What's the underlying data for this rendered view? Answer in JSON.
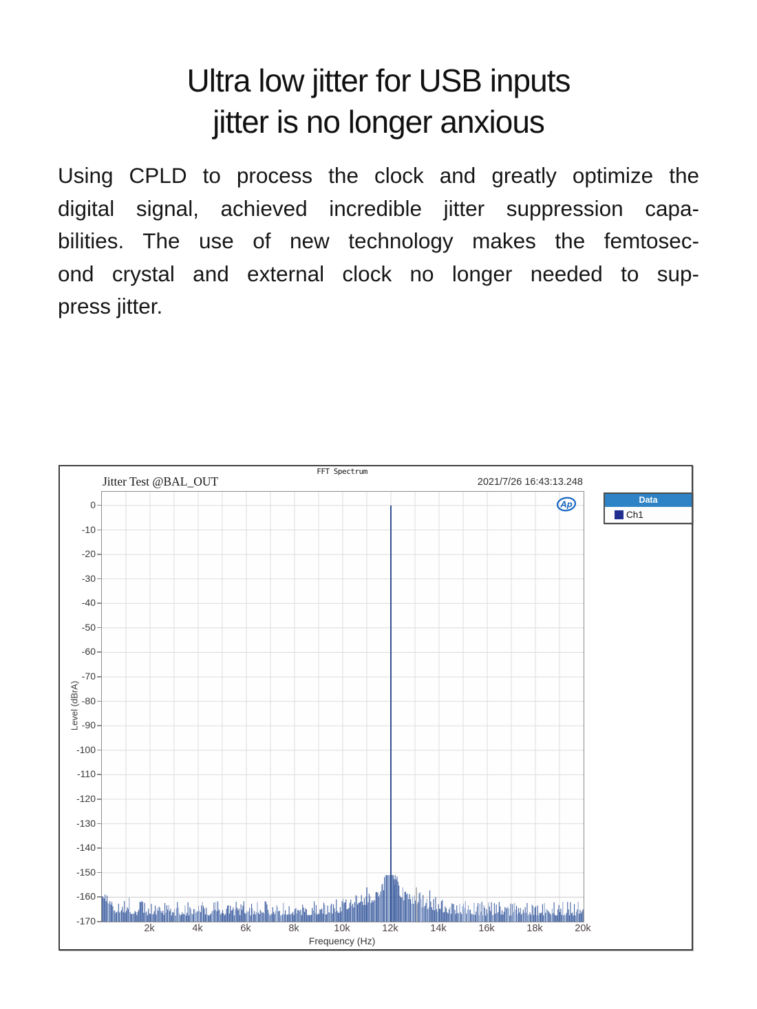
{
  "page": {
    "title_line1": "Ultra low jitter for USB inputs",
    "title_line2": "jitter is no longer anxious",
    "paragraph_lines": [
      "Using CPLD to process the clock and greatly optimize the",
      "digital signal, achieved incredible jitter suppression capa-",
      "bilities. The use of new technology makes the femtosec-",
      "ond crystal and external clock no longer needed to sup-",
      "press jitter."
    ]
  },
  "chart_data": {
    "type": "bar",
    "title": "FFT Spectrum",
    "subtitle": "Jitter Test @BAL_OUT",
    "timestamp": "2021/7/26 16:43:13.248",
    "brand_logo": "Ap",
    "xlabel": "Frequency (Hz)",
    "ylabel": "Level (dBrA)",
    "xlim_hz": [
      0,
      20000
    ],
    "ylim_db": [
      -170,
      5.6
    ],
    "grid": true,
    "x_ticks": [
      {
        "hz": 2000,
        "label": "2k"
      },
      {
        "hz": 4000,
        "label": "4k"
      },
      {
        "hz": 6000,
        "label": "6k"
      },
      {
        "hz": 8000,
        "label": "8k"
      },
      {
        "hz": 10000,
        "label": "10k"
      },
      {
        "hz": 12000,
        "label": "12k"
      },
      {
        "hz": 14000,
        "label": "14k"
      },
      {
        "hz": 16000,
        "label": "16k"
      },
      {
        "hz": 18000,
        "label": "18k"
      },
      {
        "hz": 20000,
        "label": "20k"
      }
    ],
    "y_ticks": [
      {
        "db": 0,
        "label": "0"
      },
      {
        "db": -10,
        "label": "-10"
      },
      {
        "db": -20,
        "label": "-20"
      },
      {
        "db": -30,
        "label": "-30"
      },
      {
        "db": -40,
        "label": "-40"
      },
      {
        "db": -50,
        "label": "-50"
      },
      {
        "db": -60,
        "label": "-60"
      },
      {
        "db": -70,
        "label": "-70"
      },
      {
        "db": -80,
        "label": "-80"
      },
      {
        "db": -90,
        "label": "-90"
      },
      {
        "db": -100,
        "label": "-100"
      },
      {
        "db": -110,
        "label": "-110"
      },
      {
        "db": -120,
        "label": "-120"
      },
      {
        "db": -130,
        "label": "-130"
      },
      {
        "db": -140,
        "label": "-140"
      },
      {
        "db": -150,
        "label": "-150"
      },
      {
        "db": -160,
        "label": "-160"
      },
      {
        "db": -170,
        "label": "-170"
      }
    ],
    "legend": {
      "position": "right",
      "header": "Data",
      "header_bg": "#2d83c5",
      "entries": [
        {
          "label": "Ch1",
          "color": "#202f8f"
        }
      ]
    },
    "series_color": "#3d5ea0",
    "series_color_light": "#8aa2cc",
    "main_peak": {
      "freq_hz": 12000,
      "level_db": 0
    },
    "secondary_spikes": [
      {
        "freq_hz": 11000,
        "level_db": -156,
        "color": "#3d5ea0"
      },
      {
        "freq_hz": 12150,
        "level_db": -155,
        "color": "#3d5ea0"
      },
      {
        "freq_hz": 13060,
        "level_db": -156,
        "color": "#9a9a9a"
      }
    ],
    "noise_floor": {
      "base_db": -170,
      "typical_top_db": -164,
      "left_edge_top_db": -158,
      "skirt_center_hz": 12000,
      "skirt_top_db": -151
    }
  }
}
